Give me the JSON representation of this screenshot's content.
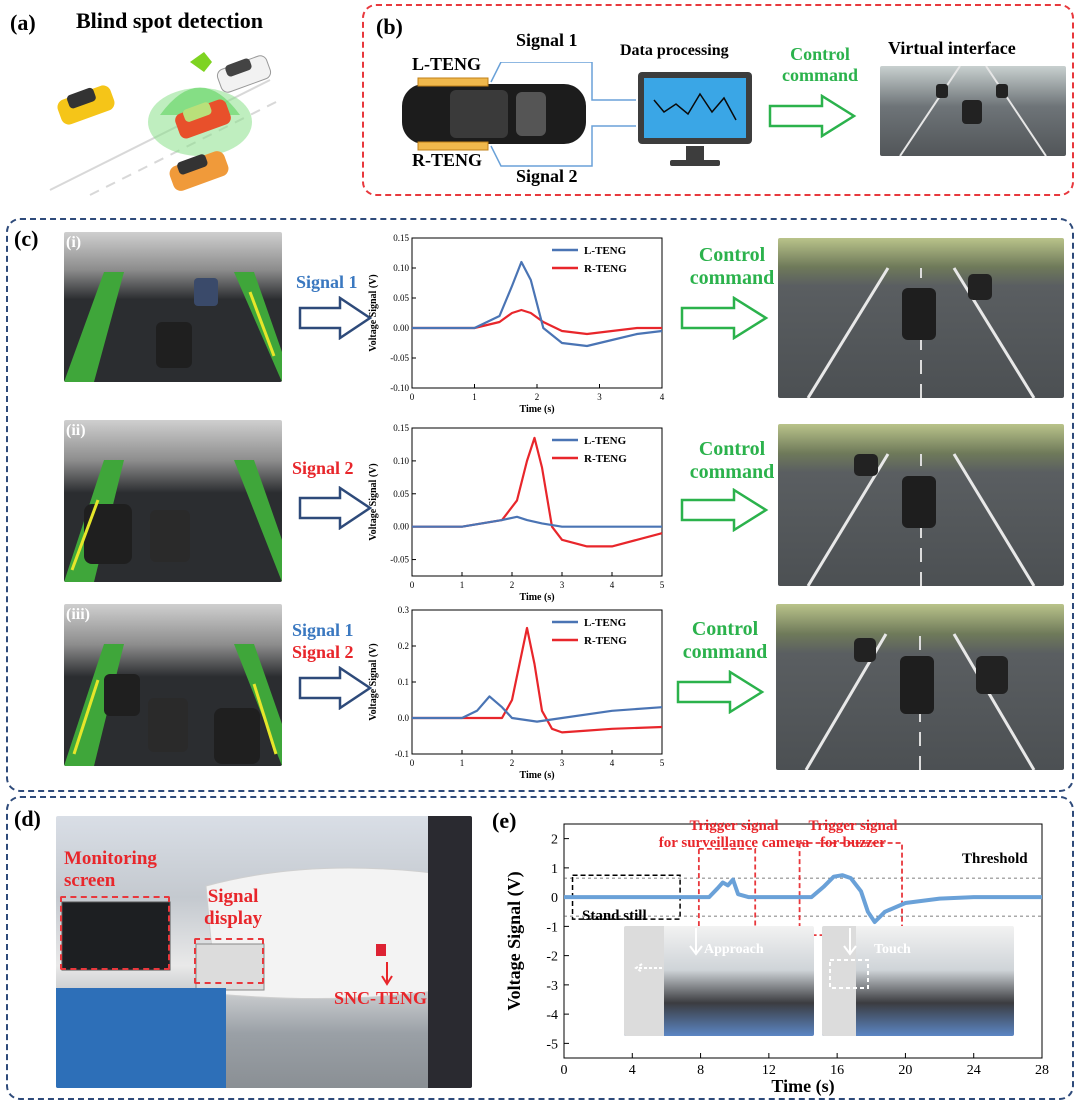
{
  "panels": {
    "a": {
      "label": "(a)",
      "title": "Blind spot detection"
    },
    "b": {
      "label": "(b)",
      "left_teng": "L-TENG",
      "right_teng": "R-TENG",
      "signal1": "Signal 1",
      "signal2": "Signal 2",
      "processing": "Data processing",
      "command_line1": "Control",
      "command_line2": "command",
      "virtual": "Virtual interface"
    },
    "c": {
      "label": "(c)",
      "rows": [
        {
          "tag": "(i)",
          "sig_a": "Signal 1",
          "sig_b": "",
          "command_line1": "Control",
          "command_line2": "command"
        },
        {
          "tag": "(ii)",
          "sig_a": "",
          "sig_b": "Signal 2",
          "command_line1": "Control",
          "command_line2": "command"
        },
        {
          "tag": "(iii)",
          "sig_a": "Signal 1",
          "sig_b": "Signal 2",
          "command_line1": "Control",
          "command_line2": "command"
        }
      ]
    },
    "d": {
      "label": "(d)",
      "monitor1": "Monitoring",
      "monitor2": "screen",
      "display1": "Signal",
      "display2": "display",
      "device": "SNC-TENG"
    },
    "e": {
      "label": "(e)",
      "trig1_line1": "Trigger signal",
      "trig1_line2": "for surveillance camera",
      "trig2_line1": "Trigger signal",
      "trig2_line2": "for buzzer",
      "threshold": "Threshold",
      "stand_still": "Stand still",
      "approach": "Approach",
      "touch": "Touch"
    }
  },
  "colors": {
    "l_teng": "#4a74b4",
    "r_teng": "#e8262b",
    "signal_blue": "#6aa1d8",
    "green": "#2bb24c",
    "dash_red": "#e8383d",
    "dash_blue": "#2e4a7a"
  },
  "chart_data": [
    {
      "id": "c-i",
      "type": "line",
      "xlabel": "Time (s)",
      "ylabel": "Voltage Signal (V)",
      "xlim": [
        0,
        4
      ],
      "ylim": [
        -0.1,
        0.15
      ],
      "xticks": [
        0,
        1,
        2,
        3,
        4
      ],
      "yticks": [
        -0.1,
        -0.05,
        0.0,
        0.05,
        0.1,
        0.15
      ],
      "ytick_labels": [
        "-0.10",
        "-0.05",
        "0.00",
        "0.05",
        "0.10",
        "0.15"
      ],
      "legend": "top-right",
      "series": [
        {
          "name": "L-TENG",
          "x": [
            0,
            1.0,
            1.4,
            1.6,
            1.75,
            1.9,
            2.1,
            2.4,
            2.8,
            3.2,
            3.6,
            4.0
          ],
          "y": [
            0.0,
            0.0,
            0.02,
            0.07,
            0.11,
            0.08,
            0.0,
            -0.025,
            -0.03,
            -0.02,
            -0.01,
            -0.005
          ]
        },
        {
          "name": "R-TENG",
          "x": [
            0,
            1.0,
            1.4,
            1.6,
            1.75,
            1.9,
            2.1,
            2.4,
            2.8,
            3.2,
            3.6,
            4.0
          ],
          "y": [
            0.0,
            0.0,
            0.01,
            0.025,
            0.03,
            0.025,
            0.01,
            -0.005,
            -0.01,
            -0.005,
            0.0,
            0.0
          ]
        }
      ]
    },
    {
      "id": "c-ii",
      "type": "line",
      "xlabel": "Time (s)",
      "ylabel": "Voltage Signal (V)",
      "xlim": [
        0,
        5
      ],
      "ylim": [
        -0.075,
        0.15
      ],
      "xticks": [
        0,
        1,
        2,
        3,
        4,
        5
      ],
      "yticks": [
        -0.05,
        0.0,
        0.05,
        0.1,
        0.15
      ],
      "ytick_labels": [
        "-0.05",
        "0.00",
        "0.05",
        "0.10",
        "0.15"
      ],
      "legend": "top-right",
      "series": [
        {
          "name": "L-TENG",
          "x": [
            0,
            1.0,
            1.8,
            2.1,
            2.3,
            2.6,
            3.0,
            4.0,
            5.0
          ],
          "y": [
            0.0,
            0.0,
            0.01,
            0.015,
            0.01,
            0.005,
            0.0,
            0.0,
            0.0
          ]
        },
        {
          "name": "R-TENG",
          "x": [
            0,
            1.0,
            1.8,
            2.1,
            2.3,
            2.45,
            2.6,
            2.8,
            3.0,
            3.5,
            4.0,
            4.5,
            5.0
          ],
          "y": [
            0.0,
            0.0,
            0.01,
            0.04,
            0.1,
            0.135,
            0.09,
            0.0,
            -0.02,
            -0.03,
            -0.03,
            -0.02,
            -0.01
          ]
        }
      ]
    },
    {
      "id": "c-iii",
      "type": "line",
      "xlabel": "Time (s)",
      "ylabel": "Voltage Signal (V)",
      "xlim": [
        0,
        5
      ],
      "ylim": [
        -0.1,
        0.3
      ],
      "xticks": [
        0,
        1,
        2,
        3,
        4,
        5
      ],
      "yticks": [
        -0.1,
        0.0,
        0.1,
        0.2,
        0.3
      ],
      "ytick_labels": [
        "-0.1",
        "0.0",
        "0.1",
        "0.2",
        "0.3"
      ],
      "legend": "top-right",
      "series": [
        {
          "name": "L-TENG",
          "x": [
            0,
            1.0,
            1.3,
            1.55,
            1.8,
            2.0,
            2.5,
            3.0,
            4.0,
            5.0
          ],
          "y": [
            0.0,
            0.0,
            0.02,
            0.06,
            0.03,
            0.0,
            -0.01,
            0.0,
            0.02,
            0.03
          ]
        },
        {
          "name": "R-TENG",
          "x": [
            0,
            1.0,
            1.8,
            2.0,
            2.15,
            2.3,
            2.45,
            2.6,
            2.8,
            3.0,
            3.5,
            4.0,
            5.0
          ],
          "y": [
            0.0,
            0.0,
            0.0,
            0.05,
            0.15,
            0.25,
            0.15,
            0.02,
            -0.03,
            -0.04,
            -0.035,
            -0.03,
            -0.025
          ]
        }
      ]
    },
    {
      "id": "e",
      "type": "line",
      "xlabel": "Time (s)",
      "ylabel": "Voltage Signal (V)",
      "xlim": [
        0,
        28
      ],
      "ylim": [
        -5.5,
        2.5
      ],
      "xticks": [
        0,
        4,
        8,
        12,
        16,
        20,
        24,
        28
      ],
      "yticks": [
        2,
        1,
        0,
        -1,
        -2,
        -3,
        -4,
        -5
      ],
      "threshold": [
        0.65,
        -0.65
      ],
      "series": [
        {
          "name": "",
          "x": [
            0,
            8.5,
            9.0,
            9.3,
            9.6,
            9.9,
            10.2,
            10.8,
            14.5,
            15.2,
            15.8,
            16.3,
            16.8,
            17.4,
            17.8,
            18.2,
            18.8,
            20,
            22,
            24,
            28
          ],
          "y": [
            0.0,
            0.0,
            0.3,
            0.5,
            0.4,
            0.6,
            0.1,
            0.0,
            0.0,
            0.35,
            0.7,
            0.75,
            0.65,
            0.2,
            -0.5,
            -0.85,
            -0.5,
            -0.2,
            -0.05,
            0.0,
            0.0
          ]
        }
      ]
    }
  ]
}
